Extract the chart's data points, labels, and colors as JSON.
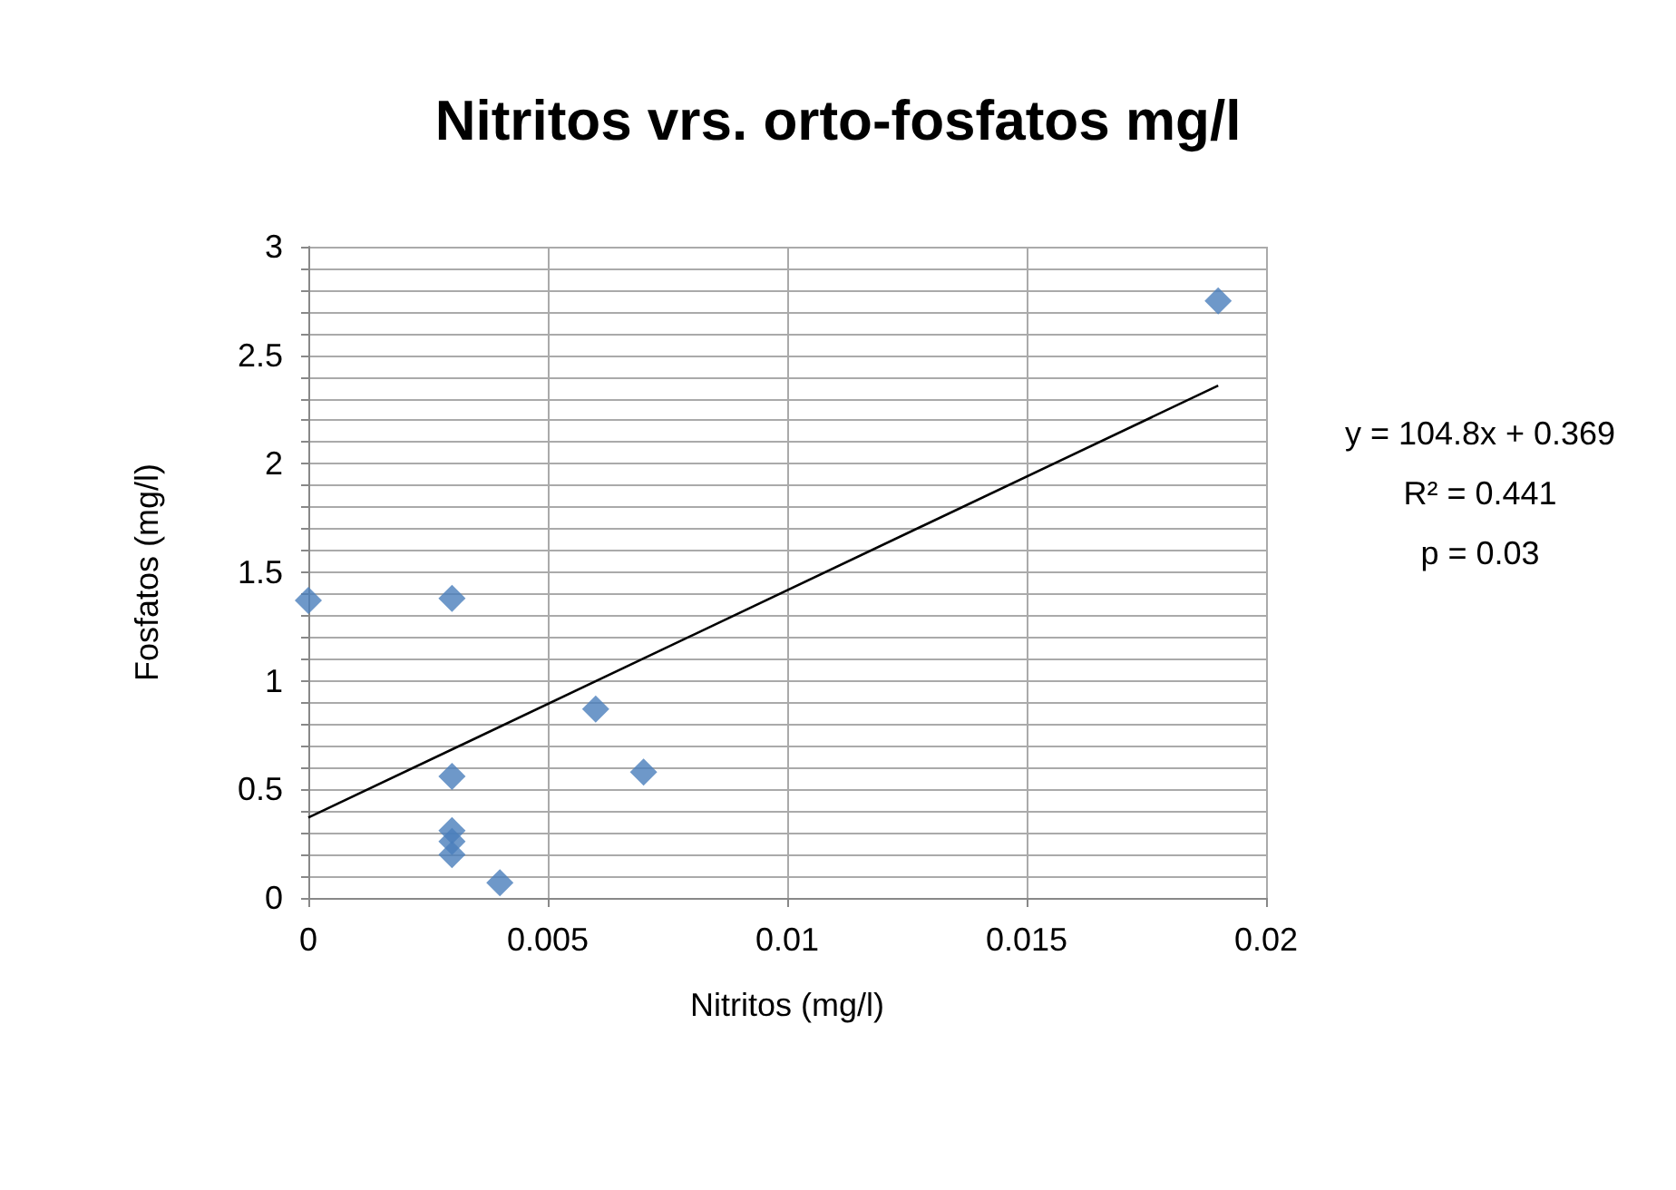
{
  "chart_data": {
    "type": "scatter",
    "title": "Nitritos vrs. orto-fosfatos mg/l",
    "xlabel": "Nitritos (mg/l)",
    "ylabel": "Fosfatos (mg/l)",
    "x": [
      0,
      0.003,
      0.003,
      0.003,
      0.003,
      0.003,
      0.004,
      0.006,
      0.007,
      0.019
    ],
    "series": [
      {
        "color": "#4a7ebb",
        "marker": "diamond",
        "values": [
          1.37,
          1.38,
          0.56,
          0.31,
          0.26,
          0.2,
          0.07,
          0.87,
          0.58,
          2.75
        ]
      },
      {
        "type": "line",
        "color": "#000000",
        "marker": "none",
        "x": [
          0,
          0.019
        ],
        "values": [
          0.37,
          2.36
        ]
      }
    ],
    "annotations": [
      "y = 104.8x + 0.369",
      "R² = 0.441",
      "p = 0.03"
    ],
    "xlim": [
      0,
      0.02
    ],
    "xticks": [
      0,
      0.005,
      0.01,
      0.015,
      0.02
    ],
    "ylim": [
      0,
      3
    ],
    "yticks": [
      0,
      {
        "value": 0.1,
        "label": null
      },
      {
        "value": 0.2,
        "label": null
      },
      {
        "value": 0.3,
        "label": null
      },
      {
        "value": 0.4,
        "label": null
      },
      0.5,
      {
        "value": 0.6,
        "label": null
      },
      {
        "value": 0.7,
        "label": null
      },
      {
        "value": 0.8,
        "label": null
      },
      {
        "value": 0.9,
        "label": null
      },
      1,
      {
        "value": 1.1,
        "label": null
      },
      {
        "value": 1.2,
        "label": null
      },
      {
        "value": 1.3,
        "label": null
      },
      {
        "value": 1.4,
        "label": null
      },
      1.5,
      {
        "value": 1.6,
        "label": null
      },
      {
        "value": 1.7,
        "label": null
      },
      {
        "value": 1.8,
        "label": null
      },
      {
        "value": 1.9,
        "label": null
      },
      2,
      {
        "value": 2.1,
        "label": null
      },
      {
        "value": 2.2,
        "label": null
      },
      {
        "value": 2.3,
        "label": null
      },
      {
        "value": 2.4,
        "label": null
      },
      2.5,
      {
        "value": 2.6,
        "label": null
      },
      {
        "value": 2.7,
        "label": null
      },
      {
        "value": 2.8,
        "label": null
      },
      {
        "value": 2.9,
        "label": null
      },
      3
    ],
    "grid": true
  }
}
